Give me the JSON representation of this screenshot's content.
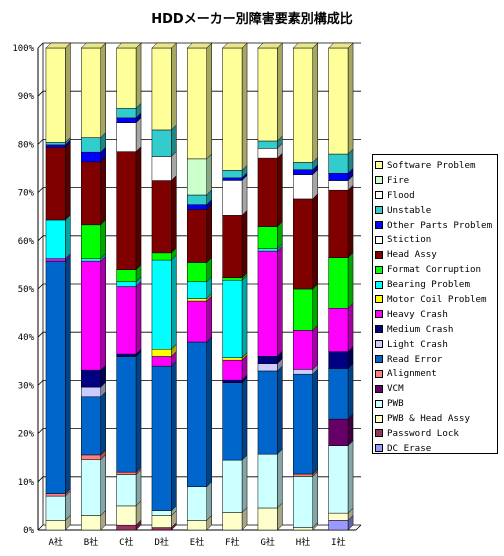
{
  "chart_data": {
    "type": "bar",
    "stacked": true,
    "percent_stacked": true,
    "title": "HDDメーカー別障害要素別構成比",
    "xlabel": "",
    "ylabel": "",
    "ylim": [
      0,
      100
    ],
    "y_ticks": [
      "0%",
      "10%",
      "20%",
      "30%",
      "40%",
      "50%",
      "60%",
      "70%",
      "80%",
      "90%",
      "100%"
    ],
    "categories": [
      "A社",
      "B社",
      "C社",
      "D社",
      "E社",
      "F社",
      "G社",
      "H社",
      "I社"
    ],
    "legend_position": "right",
    "grid": true,
    "series": [
      {
        "name": "DC Erase",
        "color": "#9999ff",
        "values": [
          0,
          0,
          0,
          0,
          0,
          0,
          0,
          0,
          2.0
        ]
      },
      {
        "name": "Password Lock",
        "color": "#993366",
        "values": [
          0,
          0,
          1.0,
          0.5,
          0,
          0,
          0,
          0,
          0
        ]
      },
      {
        "name": "PWB & Head Assy",
        "color": "#ffffcc",
        "values": [
          2.0,
          3.0,
          4.0,
          2.5,
          2.0,
          3.5,
          4.5,
          0.5,
          1.5
        ]
      },
      {
        "name": "PWB",
        "color": "#ccffff",
        "values": [
          5.0,
          11.5,
          6.5,
          1.0,
          7.0,
          10.5,
          11.0,
          10.5,
          14.0
        ]
      },
      {
        "name": "VCM",
        "color": "#660066",
        "values": [
          0,
          0,
          0,
          0,
          0,
          0,
          0,
          0,
          5.5
        ]
      },
      {
        "name": "Alignment",
        "color": "#ff8080",
        "values": [
          0.5,
          1.0,
          0.5,
          0,
          0,
          0,
          0,
          0.5,
          0
        ]
      },
      {
        "name": "Read Error",
        "color": "#0066cc",
        "values": [
          48.0,
          12.0,
          24.0,
          30.0,
          30.0,
          15.5,
          17.0,
          20.5,
          10.5
        ]
      },
      {
        "name": "Light Crash",
        "color": "#ccccff",
        "values": [
          0,
          2.0,
          0,
          0,
          0,
          0,
          1.5,
          1.0,
          0
        ]
      },
      {
        "name": "Medium Crash",
        "color": "#000080",
        "values": [
          0,
          3.5,
          0.5,
          0,
          0,
          0.5,
          1.5,
          0,
          3.5
        ]
      },
      {
        "name": "Heavy Crash",
        "color": "#ff00ff",
        "values": [
          0.5,
          22.5,
          14.0,
          2.0,
          8.5,
          4.0,
          21.5,
          8.0,
          9.0
        ]
      },
      {
        "name": "Motor Coil Problem",
        "color": "#ffff00",
        "values": [
          0,
          0,
          0,
          1.5,
          0.5,
          0.5,
          0,
          0,
          0
        ]
      },
      {
        "name": "Bearing Problem",
        "color": "#00ffff",
        "values": [
          8.0,
          0.5,
          1.0,
          18.5,
          3.5,
          15.5,
          0.5,
          0,
          0
        ]
      },
      {
        "name": "Format Corruption",
        "color": "#00ff00",
        "values": [
          0,
          7.0,
          2.5,
          1.5,
          4.0,
          0.5,
          4.5,
          8.5,
          10.5
        ]
      },
      {
        "name": "Head Assy",
        "color": "#800000",
        "values": [
          15.0,
          13.0,
          24.5,
          15.0,
          11.0,
          12.5,
          14.0,
          18.5,
          14.0
        ]
      },
      {
        "name": "Stiction",
        "color": "#ffffff",
        "values": [
          0,
          0,
          6.0,
          5.0,
          0,
          7.0,
          2.0,
          5.0,
          2.0
        ]
      },
      {
        "name": "Other Parts Problem",
        "color": "#0000ff",
        "values": [
          0.5,
          2.0,
          1.0,
          0,
          1.0,
          0.5,
          0,
          1.0,
          1.5
        ]
      },
      {
        "name": "Unstable",
        "color": "#33cccc",
        "values": [
          0.5,
          3.0,
          2.0,
          5.5,
          2.0,
          1.5,
          1.5,
          1.5,
          4.0
        ]
      },
      {
        "name": "Flood",
        "color": "#ffffff",
        "values": [
          0,
          0,
          0,
          0,
          0,
          0,
          0,
          0,
          0
        ]
      },
      {
        "name": "Fire",
        "color": "#ccffcc",
        "values": [
          0,
          0,
          0,
          0,
          7.5,
          0,
          0,
          0,
          0
        ]
      },
      {
        "name": "Software Problem",
        "color": "#ffff99",
        "values": [
          19.5,
          18.5,
          12.5,
          17.0,
          23.0,
          24.5,
          19.0,
          23.5,
          22.0
        ]
      }
    ]
  }
}
